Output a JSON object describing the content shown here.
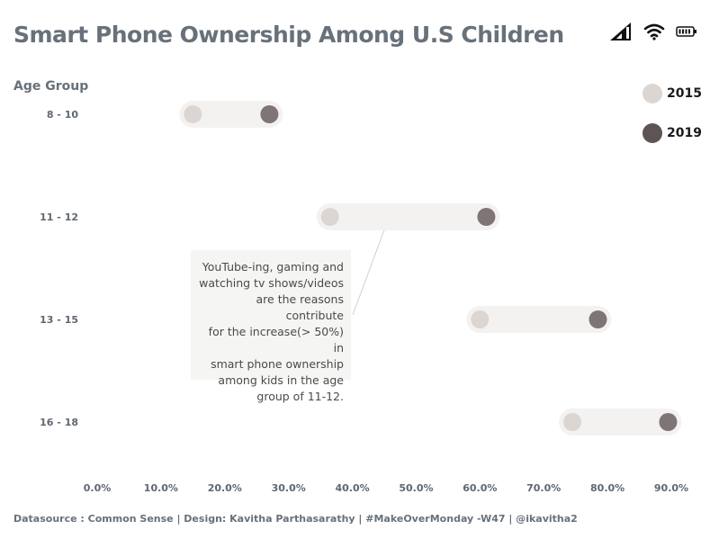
{
  "header": {
    "title": "Smart Phone Ownership Among U.S Children"
  },
  "status_icons": [
    "cellular-signal-icon",
    "wifi-icon",
    "battery-icon"
  ],
  "chart_data": {
    "type": "dumbbell",
    "title": "Smart Phone Ownership Among U.S Children",
    "ylabel": "Age Group",
    "xlabel": "",
    "categories": [
      "8 - 10",
      "11 - 12",
      "13 - 15",
      "16 - 18"
    ],
    "series": [
      {
        "name": "2015",
        "color": "#dcd6d2",
        "values": [
          15.0,
          36.5,
          60.0,
          74.5
        ]
      },
      {
        "name": "2019",
        "color": "#7f7576",
        "values": [
          27.0,
          61.0,
          78.5,
          89.5
        ]
      }
    ],
    "x_ticks": [
      "0.0%",
      "10.0%",
      "20.0%",
      "30.0%",
      "40.0%",
      "50.0%",
      "60.0%",
      "70.0%",
      "80.0%",
      "90.0%"
    ],
    "xlim": [
      0,
      90
    ],
    "legend_position": "top-right",
    "grid": false,
    "annotation": "YouTube-ing, gaming and watching tv shows/videos are the reasons contribute for the increase(> 50%) in smart phone ownership among kids in the age group of 11-12."
  },
  "legend": {
    "items": [
      {
        "label": "2015",
        "color": "#dcd6d2"
      },
      {
        "label": "2019",
        "color": "#5e5453"
      }
    ]
  },
  "annotation": {
    "lines": [
      "YouTube-ing, gaming and",
      "watching tv shows/videos",
      "are the reasons contribute",
      "for the increase(> 50%) in",
      "smart phone ownership",
      "among kids in the age",
      "group of 11-12."
    ]
  },
  "footer": {
    "text": "Datasource : Common Sense | Design: Kavitha Parthasarathy | #MakeOverMonday -W47 | @ikavitha2"
  }
}
